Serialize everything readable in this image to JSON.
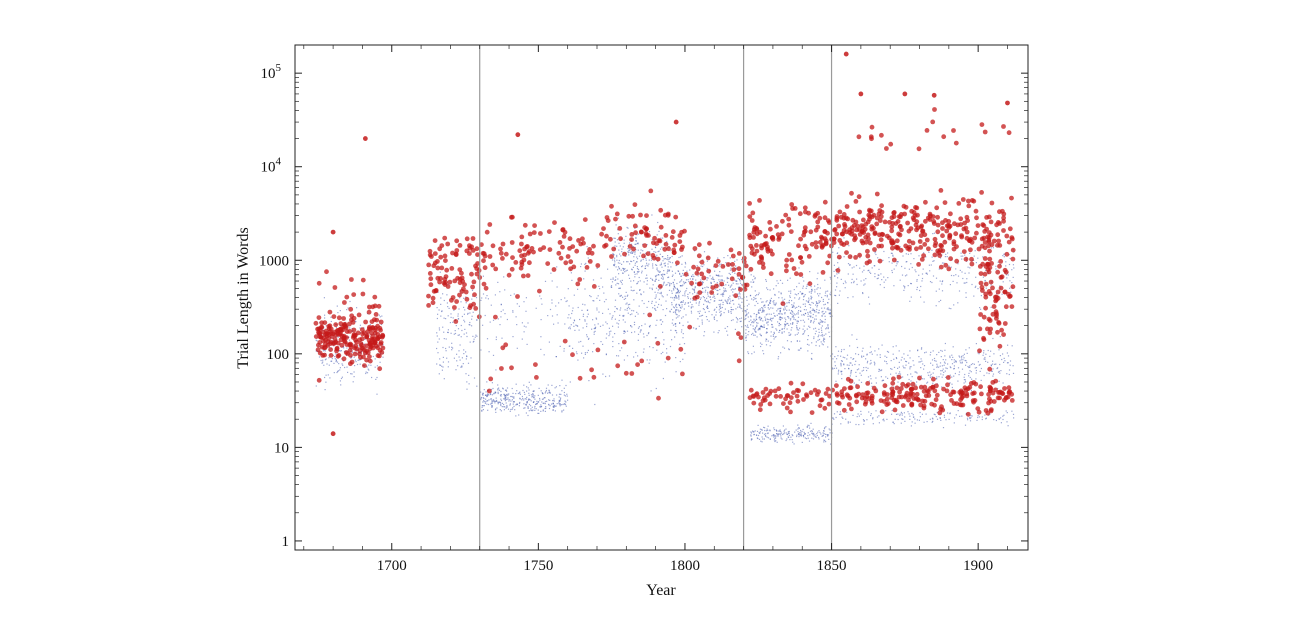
{
  "chart_data": {
    "type": "scatter",
    "title": "",
    "xlabel": "Year",
    "ylabel": "Trial Length in Words",
    "xlim": [
      1667,
      1917
    ],
    "ylim": [
      0.8,
      200000
    ],
    "y_scale": "log",
    "grid": false,
    "legend": "none",
    "x_ticks": [
      {
        "value": 1700,
        "label": "1700"
      },
      {
        "value": 1750,
        "label": "1750"
      },
      {
        "value": 1800,
        "label": "1800"
      },
      {
        "value": 1850,
        "label": "1850"
      },
      {
        "value": 1900,
        "label": "1900"
      }
    ],
    "y_ticks": [
      {
        "value": 1,
        "label": "1"
      },
      {
        "value": 10,
        "label": "10"
      },
      {
        "value": 100,
        "label": "100"
      },
      {
        "value": 1000,
        "label": "1000"
      },
      {
        "value": 10000,
        "label": "10",
        "exp": "4"
      },
      {
        "value": 100000,
        "label": "10",
        "exp": "5"
      }
    ],
    "reference_lines_x": [
      1730,
      1820,
      1850
    ],
    "colors": {
      "all_trials": "#4a5fb0",
      "highlighted_trials": "#c41a1a",
      "reference_line": "#9a9a9a"
    },
    "series": [
      {
        "role": "all_trials",
        "marker": "small dot",
        "density": [
          {
            "x": [
              1674,
              1697
            ],
            "y": [
              25,
              500
            ],
            "weight": 1.0
          },
          {
            "x": [
              1715,
              1729
            ],
            "y": [
              20,
              1500
            ],
            "weight": 0.6
          },
          {
            "x": [
              1730,
              1760
            ],
            "y": [
              18,
              60
            ],
            "weight": 1.4
          },
          {
            "x": [
              1730,
              1800
            ],
            "y": [
              30,
              2000
            ],
            "weight": 0.8
          },
          {
            "x": [
              1760,
              1800
            ],
            "y": [
              20,
              3000
            ],
            "weight": 0.9
          },
          {
            "x": [
              1775,
              1795
            ],
            "y": [
              200,
              4000
            ],
            "weight": 1.2
          },
          {
            "x": [
              1795,
              1820
            ],
            "y": [
              100,
              2000
            ],
            "weight": 1.8
          },
          {
            "x": [
              1820,
              1850
            ],
            "y": [
              60,
              1200
            ],
            "weight": 2.4
          },
          {
            "x": [
              1822,
              1850
            ],
            "y": [
              10,
              20
            ],
            "weight": 0.8
          },
          {
            "x": [
              1850,
              1912
            ],
            "y": [
              30,
              200
            ],
            "weight": 1.6
          },
          {
            "x": [
              1850,
              1912
            ],
            "y": [
              200,
              3000
            ],
            "weight": 1.2
          },
          {
            "x": [
              1850,
              1912
            ],
            "y": [
              15,
              30
            ],
            "weight": 0.6
          }
        ]
      },
      {
        "role": "highlighted_trials",
        "marker": "filled circle",
        "density": [
          {
            "x": [
              1674,
              1697
            ],
            "y": [
              60,
              350
            ],
            "weight": 2.0
          },
          {
            "x": [
              1674,
              1697
            ],
            "y": [
              20,
              2000
            ],
            "weight": 0.5
          },
          {
            "x": [
              1712,
              1730
            ],
            "y": [
              150,
              3000
            ],
            "weight": 1.0
          },
          {
            "x": [
              1730,
              1770
            ],
            "y": [
              300,
              5000
            ],
            "weight": 1.0
          },
          {
            "x": [
              1770,
              1800
            ],
            "y": [
              400,
              8000
            ],
            "weight": 0.8
          },
          {
            "x": [
              1730,
              1820
            ],
            "y": [
              20,
              500
            ],
            "weight": 0.35
          },
          {
            "x": [
              1800,
              1822
            ],
            "y": [
              200,
              3000
            ],
            "weight": 0.5
          },
          {
            "x": [
              1822,
              1850
            ],
            "y": [
              300,
              8000
            ],
            "weight": 1.3
          },
          {
            "x": [
              1822,
              1850
            ],
            "y": [
              20,
              60
            ],
            "weight": 0.6
          },
          {
            "x": [
              1850,
              1912
            ],
            "y": [
              500,
              8000
            ],
            "weight": 3.4
          },
          {
            "x": [
              1850,
              1912
            ],
            "y": [
              18,
              70
            ],
            "weight": 2.2
          },
          {
            "x": [
              1850,
              1912
            ],
            "y": [
              8000,
              60000
            ],
            "weight": 0.2
          },
          {
            "x": [
              1900,
              1912
            ],
            "y": [
              30,
              5000
            ],
            "weight": 0.8
          }
        ],
        "notable_points": [
          {
            "x": 1691,
            "y": 20000
          },
          {
            "x": 1680,
            "y": 2000
          },
          {
            "x": 1680,
            "y": 14
          },
          {
            "x": 1743,
            "y": 22000
          },
          {
            "x": 1797,
            "y": 30000
          },
          {
            "x": 1855,
            "y": 160000
          },
          {
            "x": 1860,
            "y": 60000
          },
          {
            "x": 1875,
            "y": 60000
          },
          {
            "x": 1885,
            "y": 58000
          },
          {
            "x": 1910,
            "y": 48000
          }
        ]
      }
    ]
  }
}
